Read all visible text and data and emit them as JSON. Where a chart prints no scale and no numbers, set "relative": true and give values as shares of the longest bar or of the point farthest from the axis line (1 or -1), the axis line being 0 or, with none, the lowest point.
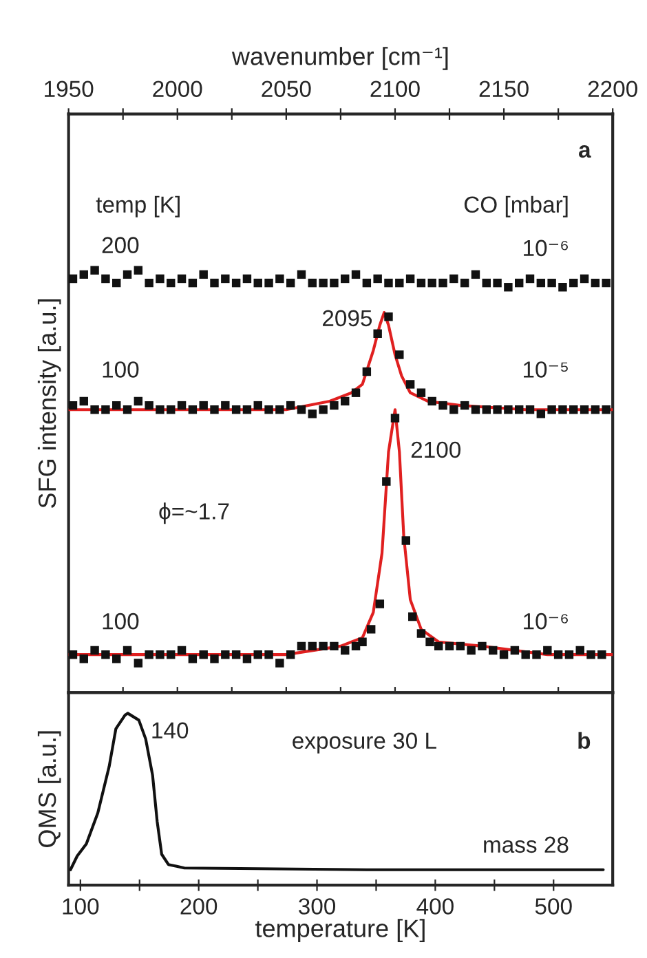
{
  "chart_data": [
    {
      "type": "scatter",
      "xlabel": "wavenumber [cm⁻¹]",
      "xlim": [
        1950,
        2200
      ],
      "xticks": [
        1950,
        {
          "value": 1975,
          "label": null
        },
        2000,
        {
          "value": 2025,
          "label": null
        },
        2050,
        {
          "value": 2075,
          "label": null
        },
        2100,
        {
          "value": 2125,
          "label": null
        },
        2150,
        {
          "value": 2175,
          "label": null
        },
        2200
      ],
      "ylabel": "SFG intensity [a.u.]",
      "relative": true,
      "series": [
        {
          "type": "scatter",
          "marker": "square",
          "color": "#111111",
          "x": [
            1952,
            1957,
            1962,
            1967,
            1972,
            1977,
            1982,
            1987,
            1992,
            1997,
            2002,
            2007,
            2012,
            2017,
            2022,
            2027,
            2032,
            2037,
            2042,
            2047,
            2052,
            2057,
            2062,
            2067,
            2072,
            2077,
            2082,
            2087,
            2092,
            2097,
            2102,
            2107,
            2112,
            2117,
            2122,
            2127,
            2132,
            2137,
            2142,
            2147,
            2152,
            2157,
            2162,
            2167,
            2172,
            2177,
            2182,
            2187,
            2192,
            2197
          ],
          "values": [
            0.98,
            0.99,
            1.0,
            0.98,
            0.97,
            0.99,
            1.0,
            0.97,
            0.98,
            0.97,
            0.98,
            0.97,
            0.99,
            0.97,
            0.98,
            0.97,
            0.98,
            0.97,
            0.97,
            0.98,
            0.97,
            0.99,
            0.97,
            0.97,
            0.97,
            0.98,
            0.99,
            0.97,
            0.98,
            0.97,
            0.97,
            0.98,
            0.97,
            0.97,
            0.97,
            0.98,
            0.97,
            0.99,
            0.97,
            0.97,
            0.96,
            0.97,
            0.98,
            0.97,
            0.97,
            0.96,
            0.97,
            0.98,
            0.97,
            0.97
          ]
        },
        {
          "type": "scatter",
          "marker": "square",
          "color": "#111111",
          "x": [
            1952,
            1957,
            1962,
            1967,
            1972,
            1977,
            1982,
            1987,
            1992,
            1997,
            2002,
            2007,
            2012,
            2017,
            2022,
            2027,
            2032,
            2037,
            2042,
            2047,
            2052,
            2057,
            2062,
            2067,
            2072,
            2077,
            2082,
            2087,
            2092,
            2097,
            2102,
            2107,
            2112,
            2117,
            2122,
            2127,
            2132,
            2137,
            2142,
            2147,
            2152,
            2157,
            2162,
            2167,
            2172,
            2177,
            2182,
            2187,
            2192,
            2197
          ],
          "values": [
            0.68,
            0.69,
            0.67,
            0.67,
            0.68,
            0.67,
            0.69,
            0.68,
            0.67,
            0.67,
            0.68,
            0.67,
            0.68,
            0.67,
            0.68,
            0.67,
            0.67,
            0.68,
            0.67,
            0.67,
            0.68,
            0.67,
            0.66,
            0.67,
            0.68,
            0.69,
            0.71,
            0.76,
            0.85,
            0.89,
            0.8,
            0.73,
            0.71,
            0.69,
            0.68,
            0.67,
            0.68,
            0.67,
            0.67,
            0.67,
            0.67,
            0.67,
            0.67,
            0.66,
            0.67,
            0.67,
            0.67,
            0.67,
            0.67,
            0.67
          ]
        },
        {
          "type": "line",
          "color": "#e02020",
          "x": [
            1950,
            2000,
            2050,
            2070,
            2080,
            2085,
            2090,
            2093,
            2095,
            2097,
            2100,
            2103,
            2107,
            2115,
            2130,
            2160,
            2200
          ],
          "values": [
            0.67,
            0.67,
            0.67,
            0.69,
            0.71,
            0.73,
            0.81,
            0.87,
            0.9,
            0.87,
            0.8,
            0.75,
            0.71,
            0.69,
            0.68,
            0.67,
            0.67
          ]
        },
        {
          "type": "scatter",
          "marker": "square",
          "color": "#111111",
          "x": [
            1952,
            1957,
            1962,
            1967,
            1972,
            1977,
            1982,
            1987,
            1992,
            1997,
            2002,
            2007,
            2012,
            2017,
            2022,
            2027,
            2032,
            2037,
            2042,
            2047,
            2052,
            2057,
            2062,
            2067,
            2072,
            2077,
            2082,
            2085,
            2089,
            2093,
            2096,
            2100,
            2105,
            2108,
            2112,
            2116,
            2120,
            2125,
            2130,
            2135,
            2140,
            2145,
            2150,
            2155,
            2160,
            2165,
            2170,
            2175,
            2180,
            2185,
            2190,
            2195
          ],
          "values": [
            0.09,
            0.08,
            0.1,
            0.09,
            0.08,
            0.1,
            0.07,
            0.09,
            0.09,
            0.09,
            0.1,
            0.08,
            0.09,
            0.08,
            0.09,
            0.09,
            0.08,
            0.09,
            0.09,
            0.07,
            0.09,
            0.11,
            0.11,
            0.11,
            0.11,
            0.1,
            0.11,
            0.12,
            0.15,
            0.21,
            0.5,
            0.65,
            0.36,
            0.18,
            0.14,
            0.12,
            0.11,
            0.11,
            0.11,
            0.1,
            0.11,
            0.1,
            0.09,
            0.1,
            0.09,
            0.09,
            0.1,
            0.09,
            0.09,
            0.1,
            0.09,
            0.09
          ]
        },
        {
          "type": "line",
          "color": "#e02020",
          "x": [
            1950,
            2050,
            2075,
            2085,
            2090,
            2094,
            2097,
            2100,
            2102,
            2104,
            2107,
            2112,
            2120,
            2140,
            2170,
            2200
          ],
          "values": [
            0.09,
            0.09,
            0.11,
            0.13,
            0.19,
            0.33,
            0.57,
            0.67,
            0.57,
            0.37,
            0.22,
            0.15,
            0.12,
            0.11,
            0.09,
            0.09
          ]
        }
      ],
      "annotations": [
        "a",
        "temp [K]",
        "CO [mbar]",
        "200",
        "10⁻⁶",
        "100",
        "10⁻⁵",
        "ϕ=~1.7",
        "100",
        "10⁻⁶",
        {
          "text": "2095",
          "x": 2095,
          "y": 0.9
        },
        {
          "text": "2100",
          "x": 2100,
          "y": 0.67
        }
      ]
    },
    {
      "type": "line",
      "xlabel": "temperature [K]",
      "xlim": [
        90,
        550
      ],
      "xticks": [
        100,
        {
          "value": 150,
          "label": null
        },
        200,
        {
          "value": 250,
          "label": null
        },
        300,
        {
          "value": 350,
          "label": null
        },
        400,
        {
          "value": 450,
          "label": null
        },
        500
      ],
      "ylabel": "QMS [a.u.]",
      "relative": true,
      "color": "#111111",
      "x": [
        91.6,
        97.3,
        105,
        114.7,
        124.3,
        130,
        137.8,
        140,
        149.4,
        155.2,
        161,
        164.9,
        168.7,
        174.4,
        187.9,
        342,
        542
      ],
      "values": [
        0.09,
        0.17,
        0.24,
        0.42,
        0.69,
        0.91,
        0.99,
        1.0,
        0.96,
        0.85,
        0.64,
        0.37,
        0.18,
        0.12,
        0.1,
        0.09,
        0.09
      ],
      "annotations": [
        "exposure 30 L",
        "b",
        "mass 28",
        {
          "text": "140",
          "x": 140,
          "y": 1.0
        }
      ]
    }
  ]
}
